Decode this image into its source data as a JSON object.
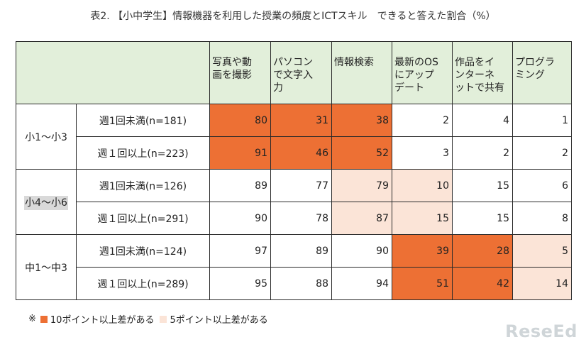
{
  "title": "表2. 【小中学生】情報機器を利用した授業の頻度とICTスキル　できると答えた割合（%）",
  "chart_data": {
    "type": "table",
    "columns": [
      [
        "写真や動",
        "画を撮影"
      ],
      [
        "パソコン",
        "で文字入",
        "力"
      ],
      [
        "情報検索"
      ],
      [
        "最新のOS",
        "にアップ",
        "デート"
      ],
      [
        "作品をイ",
        "ンターネ",
        "ットで共有"
      ],
      [
        "プログラ",
        "ミング"
      ]
    ],
    "groups": [
      {
        "label": "小1～小3",
        "highlight": false,
        "rows": [
          {
            "label": "週1回未満(n=181)",
            "values": [
              80,
              31,
              38,
              2,
              4,
              1
            ],
            "shade": [
              "big",
              "big",
              "big",
              "",
              "",
              ""
            ]
          },
          {
            "label": "週１回以上(n=223)",
            "values": [
              91,
              46,
              52,
              3,
              2,
              2
            ],
            "shade": [
              "big",
              "big",
              "big",
              "",
              "",
              ""
            ]
          }
        ]
      },
      {
        "label": "小4～小6",
        "highlight": true,
        "rows": [
          {
            "label": "週1回未満(n=126)",
            "values": [
              89,
              77,
              79,
              10,
              15,
              6
            ],
            "shade": [
              "",
              "",
              "small",
              "small",
              "",
              ""
            ]
          },
          {
            "label": "週１回以上(n=291)",
            "values": [
              90,
              78,
              87,
              15,
              15,
              8
            ],
            "shade": [
              "",
              "",
              "small",
              "small",
              "",
              ""
            ]
          }
        ]
      },
      {
        "label": "中1～中3",
        "highlight": false,
        "rows": [
          {
            "label": "週1回未満(n=124)",
            "values": [
              97,
              89,
              90,
              39,
              28,
              5
            ],
            "shade": [
              "",
              "",
              "",
              "big",
              "big",
              "small"
            ]
          },
          {
            "label": "週１回以上(n=289)",
            "values": [
              95,
              88,
              94,
              51,
              42,
              14
            ],
            "shade": [
              "",
              "",
              "",
              "big",
              "big",
              "small"
            ]
          }
        ]
      }
    ],
    "colors": {
      "big": "#ed7034",
      "small": "#fbe4d7",
      "header": "#e2efda"
    }
  },
  "legend": {
    "prefix": "※",
    "big_label": "10ポイント以上差がある",
    "small_label": "5ポイント以上差がある"
  },
  "logo": "ReseEd"
}
